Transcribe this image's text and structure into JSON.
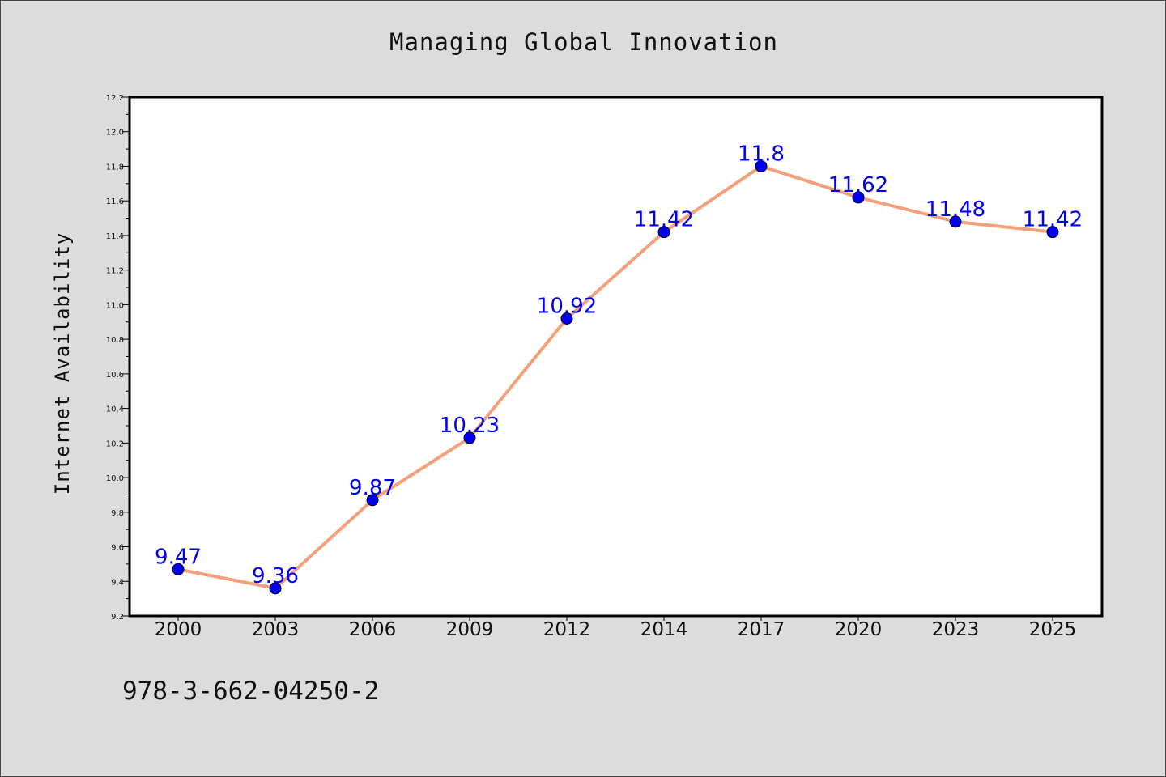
{
  "chart_data": {
    "type": "line",
    "title": "Managing Global Innovation",
    "xlabel": "",
    "ylabel": "Internet Availability",
    "categories": [
      "2000",
      "2003",
      "2006",
      "2009",
      "2012",
      "2014",
      "2017",
      "2020",
      "2023",
      "2025"
    ],
    "series": [
      {
        "values": [
          9.47,
          9.36,
          9.87,
          10.23,
          10.92,
          11.42,
          11.8,
          11.62,
          11.48,
          11.42
        ],
        "labels": [
          "9.47",
          "9.36",
          "9.87",
          "10.23",
          "10.92",
          "11.42",
          "11.8",
          "11.62",
          "11.48",
          "11.42"
        ],
        "line_color": "#f4a07a",
        "marker_color": "#0000ee",
        "label_color": "#0000ee"
      }
    ],
    "ylim": [
      9.2,
      12.2
    ],
    "yticks": [
      "9.2",
      "9.4",
      "9.6",
      "9.8",
      "10.0",
      "10.2",
      "10.4",
      "10.6",
      "10.8",
      "11.0",
      "11.2",
      "11.4",
      "11.6",
      "11.8",
      "12.0",
      "12.2"
    ],
    "grid": false,
    "legend": "none"
  },
  "footer": {
    "isbn": "978-3-662-04250-2"
  },
  "colors": {
    "background": "#dcdcdc",
    "plot_background": "#ffffff",
    "axis": "#000000"
  }
}
